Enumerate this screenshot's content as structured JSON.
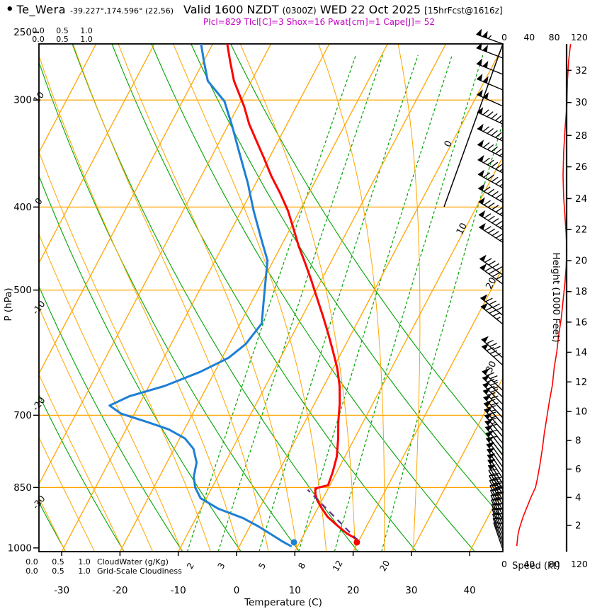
{
  "header": {
    "bullet": "•",
    "station": "Te_Wera",
    "coords": "-39.227°,174.596° (22,56)",
    "valid_prefix": "Valid 1600 NZDT ",
    "valid_z": "(0300Z)",
    "valid_date": " WED 22 Oct 2025 ",
    "fcst": "[15hrFcst@1616z]",
    "params": "PIcl=829 TIcl[C]=3 Shox=16 Pwat[cm]=1 Cape[J]= 52"
  },
  "chart_data": {
    "type": "skewt-log-p sounding",
    "station": "Te_Wera",
    "pressure_axis": {
      "label": "P (hPa)",
      "ticks": [
        250,
        300,
        400,
        500,
        700,
        850,
        1000
      ]
    },
    "temperature_axis": {
      "label": "Temperature (C)",
      "ticks": [
        -30,
        -20,
        -10,
        0,
        10,
        20,
        30,
        40
      ]
    },
    "height_axis": {
      "label": "Height (1000 Feet)",
      "ticks": [
        [
          2,
          941
        ],
        [
          4,
          873
        ],
        [
          6,
          809
        ],
        [
          8,
          749
        ],
        [
          10,
          693
        ],
        [
          12,
          640
        ],
        [
          14,
          591
        ],
        [
          16,
          545
        ],
        [
          18,
          502
        ],
        [
          20,
          462
        ],
        [
          22,
          425
        ],
        [
          24,
          391
        ],
        [
          26,
          359
        ],
        [
          28,
          330
        ],
        [
          30,
          302
        ],
        [
          32,
          277
        ]
      ]
    },
    "speed_axis": {
      "label": "Speed (kt)",
      "ticks": [
        0,
        40,
        80,
        120
      ]
    },
    "cloud_scale": {
      "values": [
        "0.0",
        "0.5",
        "1.0"
      ],
      "cloudwater_label": "CloudWater (g/Kg)",
      "gridscale_label": "Grid-Scale Cloudiness"
    },
    "isobars": [
      300,
      400,
      500,
      700,
      850
    ],
    "isotherms": {
      "min": -120,
      "max": 40,
      "step": 10,
      "labels": [
        [
          0,
          205
        ],
        [
          10,
          325
        ],
        [
          20,
          402
        ],
        [
          30,
          520
        ]
      ]
    },
    "dry_adiabats": {
      "values": [
        -30,
        -20,
        -10,
        0,
        10,
        20,
        30,
        40,
        50,
        60
      ],
      "labels": [
        [
          10,
          140
        ],
        [
          0,
          287
        ],
        [
          -10,
          437
        ],
        [
          -20,
          573
        ],
        [
          -30,
          712
        ]
      ]
    },
    "moist_adiabats": [
      -30,
      -25,
      -20,
      -15,
      -10,
      -5,
      0,
      5,
      10,
      15,
      20,
      25,
      30
    ],
    "mixing_ratio_lines": [
      2,
      3,
      5,
      8,
      12,
      20
    ],
    "temperature_profile": [
      [
        258,
        -47.5
      ],
      [
        270,
        -45.5
      ],
      [
        285,
        -43
      ],
      [
        305,
        -39
      ],
      [
        320,
        -36.5
      ],
      [
        335,
        -33.7
      ],
      [
        350,
        -31
      ],
      [
        368,
        -28
      ],
      [
        385,
        -25
      ],
      [
        404,
        -22
      ],
      [
        425,
        -19.3
      ],
      [
        444,
        -17
      ],
      [
        466,
        -14.2
      ],
      [
        488,
        -11.6
      ],
      [
        512,
        -9
      ],
      [
        536,
        -6.5
      ],
      [
        562,
        -4
      ],
      [
        589,
        -1.6
      ],
      [
        617,
        0.7
      ],
      [
        647,
        2.7
      ],
      [
        678,
        4.3
      ],
      [
        712,
        5.7
      ],
      [
        745,
        7.2
      ],
      [
        782,
        8.6
      ],
      [
        815,
        9.3
      ],
      [
        845,
        9.7
      ],
      [
        852,
        7.8
      ],
      [
        865,
        8.3
      ],
      [
        880,
        9.2
      ],
      [
        900,
        10.8
      ],
      [
        920,
        12.5
      ],
      [
        944,
        15.2
      ],
      [
        962,
        17.3
      ],
      [
        977,
        19.5
      ]
    ],
    "dewpoint_profile": [
      [
        258,
        -52
      ],
      [
        270,
        -50
      ],
      [
        285,
        -47.5
      ],
      [
        301,
        -42.8
      ],
      [
        322,
        -39.2
      ],
      [
        347,
        -35.4
      ],
      [
        375,
        -31.4
      ],
      [
        404,
        -27.9
      ],
      [
        437,
        -23.9
      ],
      [
        462,
        -21
      ],
      [
        488,
        -19.5
      ],
      [
        517,
        -17.9
      ],
      [
        547,
        -16.3
      ],
      [
        578,
        -17.2
      ],
      [
        600,
        -18.9
      ],
      [
        623,
        -22.5
      ],
      [
        647,
        -27.3
      ],
      [
        665,
        -32.4
      ],
      [
        682,
        -35
      ],
      [
        697,
        -32.3
      ],
      [
        713,
        -27
      ],
      [
        727,
        -22.7
      ],
      [
        745,
        -19.1
      ],
      [
        766,
        -16.7
      ],
      [
        795,
        -14.9
      ],
      [
        826,
        -14.1
      ],
      [
        850,
        -12.9
      ],
      [
        875,
        -11
      ],
      [
        900,
        -7
      ],
      [
        923,
        -1.9
      ],
      [
        944,
        1.5
      ],
      [
        965,
        4.5
      ],
      [
        983,
        7
      ],
      [
        995,
        8.8
      ]
    ],
    "parcel_path": [
      [
        980,
        19.8
      ],
      [
        855,
        6.6
      ]
    ],
    "surface_dots": {
      "temperature": [
        985,
        19.8
      ],
      "dewpoint": [
        985,
        9.0
      ]
    },
    "frame_diagonal": [
      [
        627,
        292
      ],
      [
        710,
        62
      ]
    ],
    "wind_speed_profile": [
      [
        258,
        106
      ],
      [
        270,
        103
      ],
      [
        285,
        101
      ],
      [
        305,
        100
      ],
      [
        325,
        97
      ],
      [
        345,
        95
      ],
      [
        368,
        94
      ],
      [
        390,
        95
      ],
      [
        410,
        97
      ],
      [
        430,
        99
      ],
      [
        450,
        100
      ],
      [
        470,
        99
      ],
      [
        490,
        97
      ],
      [
        515,
        94
      ],
      [
        540,
        91
      ],
      [
        565,
        87
      ],
      [
        590,
        84
      ],
      [
        615,
        80
      ],
      [
        645,
        77
      ],
      [
        675,
        72
      ],
      [
        705,
        68
      ],
      [
        735,
        64
      ],
      [
        765,
        61
      ],
      [
        800,
        57
      ],
      [
        830,
        53
      ],
      [
        850,
        50
      ],
      [
        862,
        46
      ],
      [
        875,
        42
      ],
      [
        890,
        38
      ],
      [
        905,
        34
      ],
      [
        920,
        30
      ],
      [
        935,
        27
      ],
      [
        950,
        24
      ],
      [
        965,
        22
      ],
      [
        980,
        21
      ],
      [
        995,
        20
      ]
    ],
    "wind_barbs": [
      [
        258,
        290,
        105
      ],
      [
        268,
        291,
        100
      ],
      [
        280,
        292,
        100
      ],
      [
        292,
        293,
        100
      ],
      [
        305,
        294,
        100
      ],
      [
        320,
        295,
        95
      ],
      [
        335,
        296,
        95
      ],
      [
        350,
        297,
        95
      ],
      [
        365,
        298,
        95
      ],
      [
        380,
        299,
        95
      ],
      [
        395,
        300,
        95
      ],
      [
        410,
        301,
        95
      ],
      [
        425,
        302,
        95
      ],
      [
        440,
        303,
        95
      ],
      [
        480,
        305,
        90
      ],
      [
        492,
        306,
        90
      ],
      [
        535,
        308,
        90
      ],
      [
        548,
        309,
        85
      ],
      [
        600,
        311,
        80
      ],
      [
        612,
        312,
        80
      ],
      [
        655,
        313,
        75
      ],
      [
        667,
        314,
        73
      ],
      [
        680,
        315,
        72
      ],
      [
        692,
        316,
        70
      ],
      [
        705,
        317,
        68
      ],
      [
        717,
        318,
        66
      ],
      [
        730,
        319,
        65
      ],
      [
        742,
        320,
        63
      ],
      [
        755,
        321,
        62
      ],
      [
        767,
        322,
        60
      ],
      [
        780,
        323,
        58
      ],
      [
        792,
        324,
        57
      ],
      [
        805,
        325,
        55
      ],
      [
        817,
        326,
        54
      ],
      [
        830,
        327,
        52
      ],
      [
        842,
        328,
        50
      ],
      [
        855,
        329,
        48
      ],
      [
        867,
        330,
        45
      ],
      [
        880,
        331,
        42
      ],
      [
        892,
        332,
        38
      ],
      [
        905,
        333,
        35
      ],
      [
        917,
        334,
        32
      ],
      [
        930,
        335,
        30
      ],
      [
        942,
        336,
        28
      ],
      [
        955,
        337,
        26
      ],
      [
        967,
        338,
        24
      ],
      [
        980,
        339,
        22
      ],
      [
        992,
        340,
        19
      ],
      [
        1004,
        341,
        16
      ]
    ],
    "colors": {
      "temperature": "#ff0000",
      "dewpoint": "#1e7fd6",
      "isotherm": "#ffa500",
      "moist_adiabat": "#ffa500",
      "dry_adiabat": "#00a400",
      "mixing_ratio": "#00a400",
      "parcel": "#6a2d8f",
      "speed": "#ff0000",
      "params": "#c400c4"
    }
  }
}
